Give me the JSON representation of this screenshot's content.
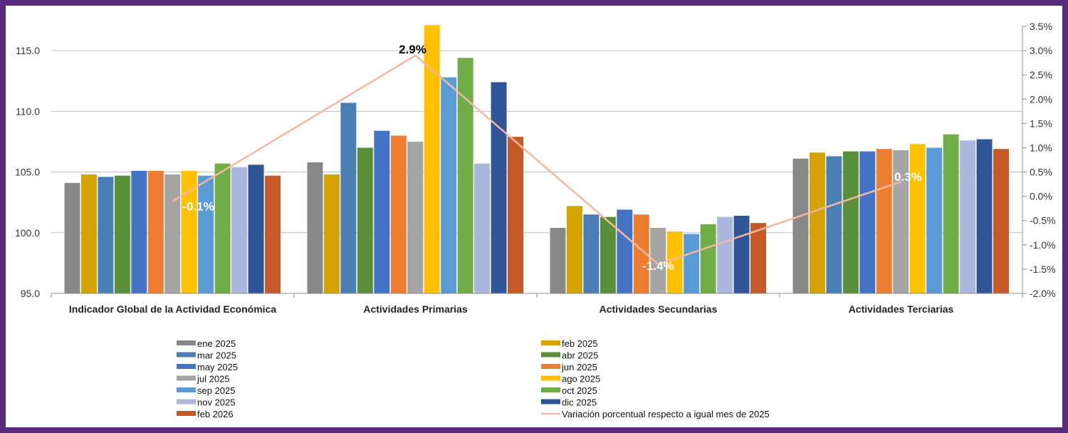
{
  "chart_data": {
    "type": "bar",
    "categories": [
      "Indicador Global de la Actividad Económica",
      "Actividades Primarias",
      "Actividades Secundarias",
      "Actividades Terciarias"
    ],
    "y_left": {
      "min": 95,
      "max": 117,
      "ticks": [
        95.0,
        100.0,
        105.0,
        110.0,
        115.0
      ],
      "tick_labels": [
        "95.0",
        "100.0",
        "105.0",
        "110.0",
        "115.0"
      ]
    },
    "y_right": {
      "min": -2.0,
      "max": 3.5,
      "ticks": [
        -2.0,
        -1.5,
        -1.0,
        -0.5,
        0.0,
        0.5,
        1.0,
        1.5,
        2.0,
        2.5,
        3.0,
        3.5
      ],
      "tick_labels": [
        "-2.0%",
        "-1.5%",
        "-1.0%",
        "-0.5%",
        "0.0%",
        "0.5%",
        "1.0%",
        "1.5%",
        "2.0%",
        "2.5%",
        "3.0%",
        "3.5%"
      ]
    },
    "series": [
      {
        "name": "ene 2025",
        "color": "#888888",
        "values": [
          104.1,
          105.8,
          100.4,
          106.1
        ]
      },
      {
        "name": "feb 2025",
        "color": "#d4a300",
        "values": [
          104.8,
          104.8,
          102.2,
          106.6
        ]
      },
      {
        "name": "mar 2025",
        "color": "#4a7eb5",
        "values": [
          104.6,
          110.7,
          101.5,
          106.3
        ]
      },
      {
        "name": "abr 2025",
        "color": "#5a8f3a",
        "values": [
          104.7,
          107.0,
          101.3,
          106.7
        ]
      },
      {
        "name": "may 2025",
        "color": "#4472c4",
        "values": [
          105.1,
          108.4,
          101.9,
          106.7
        ]
      },
      {
        "name": "jun 2025",
        "color": "#ed7d31",
        "values": [
          105.1,
          108.0,
          101.5,
          106.9
        ]
      },
      {
        "name": "jul 2025",
        "color": "#a5a5a5",
        "values": [
          104.8,
          107.5,
          100.4,
          106.8
        ]
      },
      {
        "name": "ago 2025",
        "color": "#ffc000",
        "values": [
          105.1,
          117.1,
          100.1,
          107.3
        ]
      },
      {
        "name": "sep 2025",
        "color": "#5b9bd5",
        "values": [
          104.7,
          112.8,
          99.9,
          107.0
        ]
      },
      {
        "name": "oct 2025",
        "color": "#70ad47",
        "values": [
          105.7,
          114.4,
          100.7,
          108.1
        ]
      },
      {
        "name": "nov 2025",
        "color": "#a9b7dc",
        "values": [
          105.4,
          105.7,
          101.3,
          107.6
        ]
      },
      {
        "name": "dic 2025",
        "color": "#2f5597",
        "values": [
          105.6,
          112.4,
          101.4,
          107.7
        ]
      },
      {
        "name": "feb 2026",
        "color": "#c55a28",
        "values": [
          104.7,
          107.9,
          100.8,
          106.9
        ]
      }
    ],
    "line": {
      "name": "Variación porcentual respecto a igual mes de 2025",
      "color": "#f4b8a0",
      "values": [
        -0.1,
        2.9,
        -1.4,
        0.3
      ],
      "labels": [
        "-0.1%",
        "2.9%",
        "-1.4%",
        "0.3%"
      ],
      "label_colors": [
        "#ffffff",
        "#000000",
        "#ffffff",
        "#ffffff"
      ]
    },
    "legend_placement": "bottom",
    "grid": true
  }
}
